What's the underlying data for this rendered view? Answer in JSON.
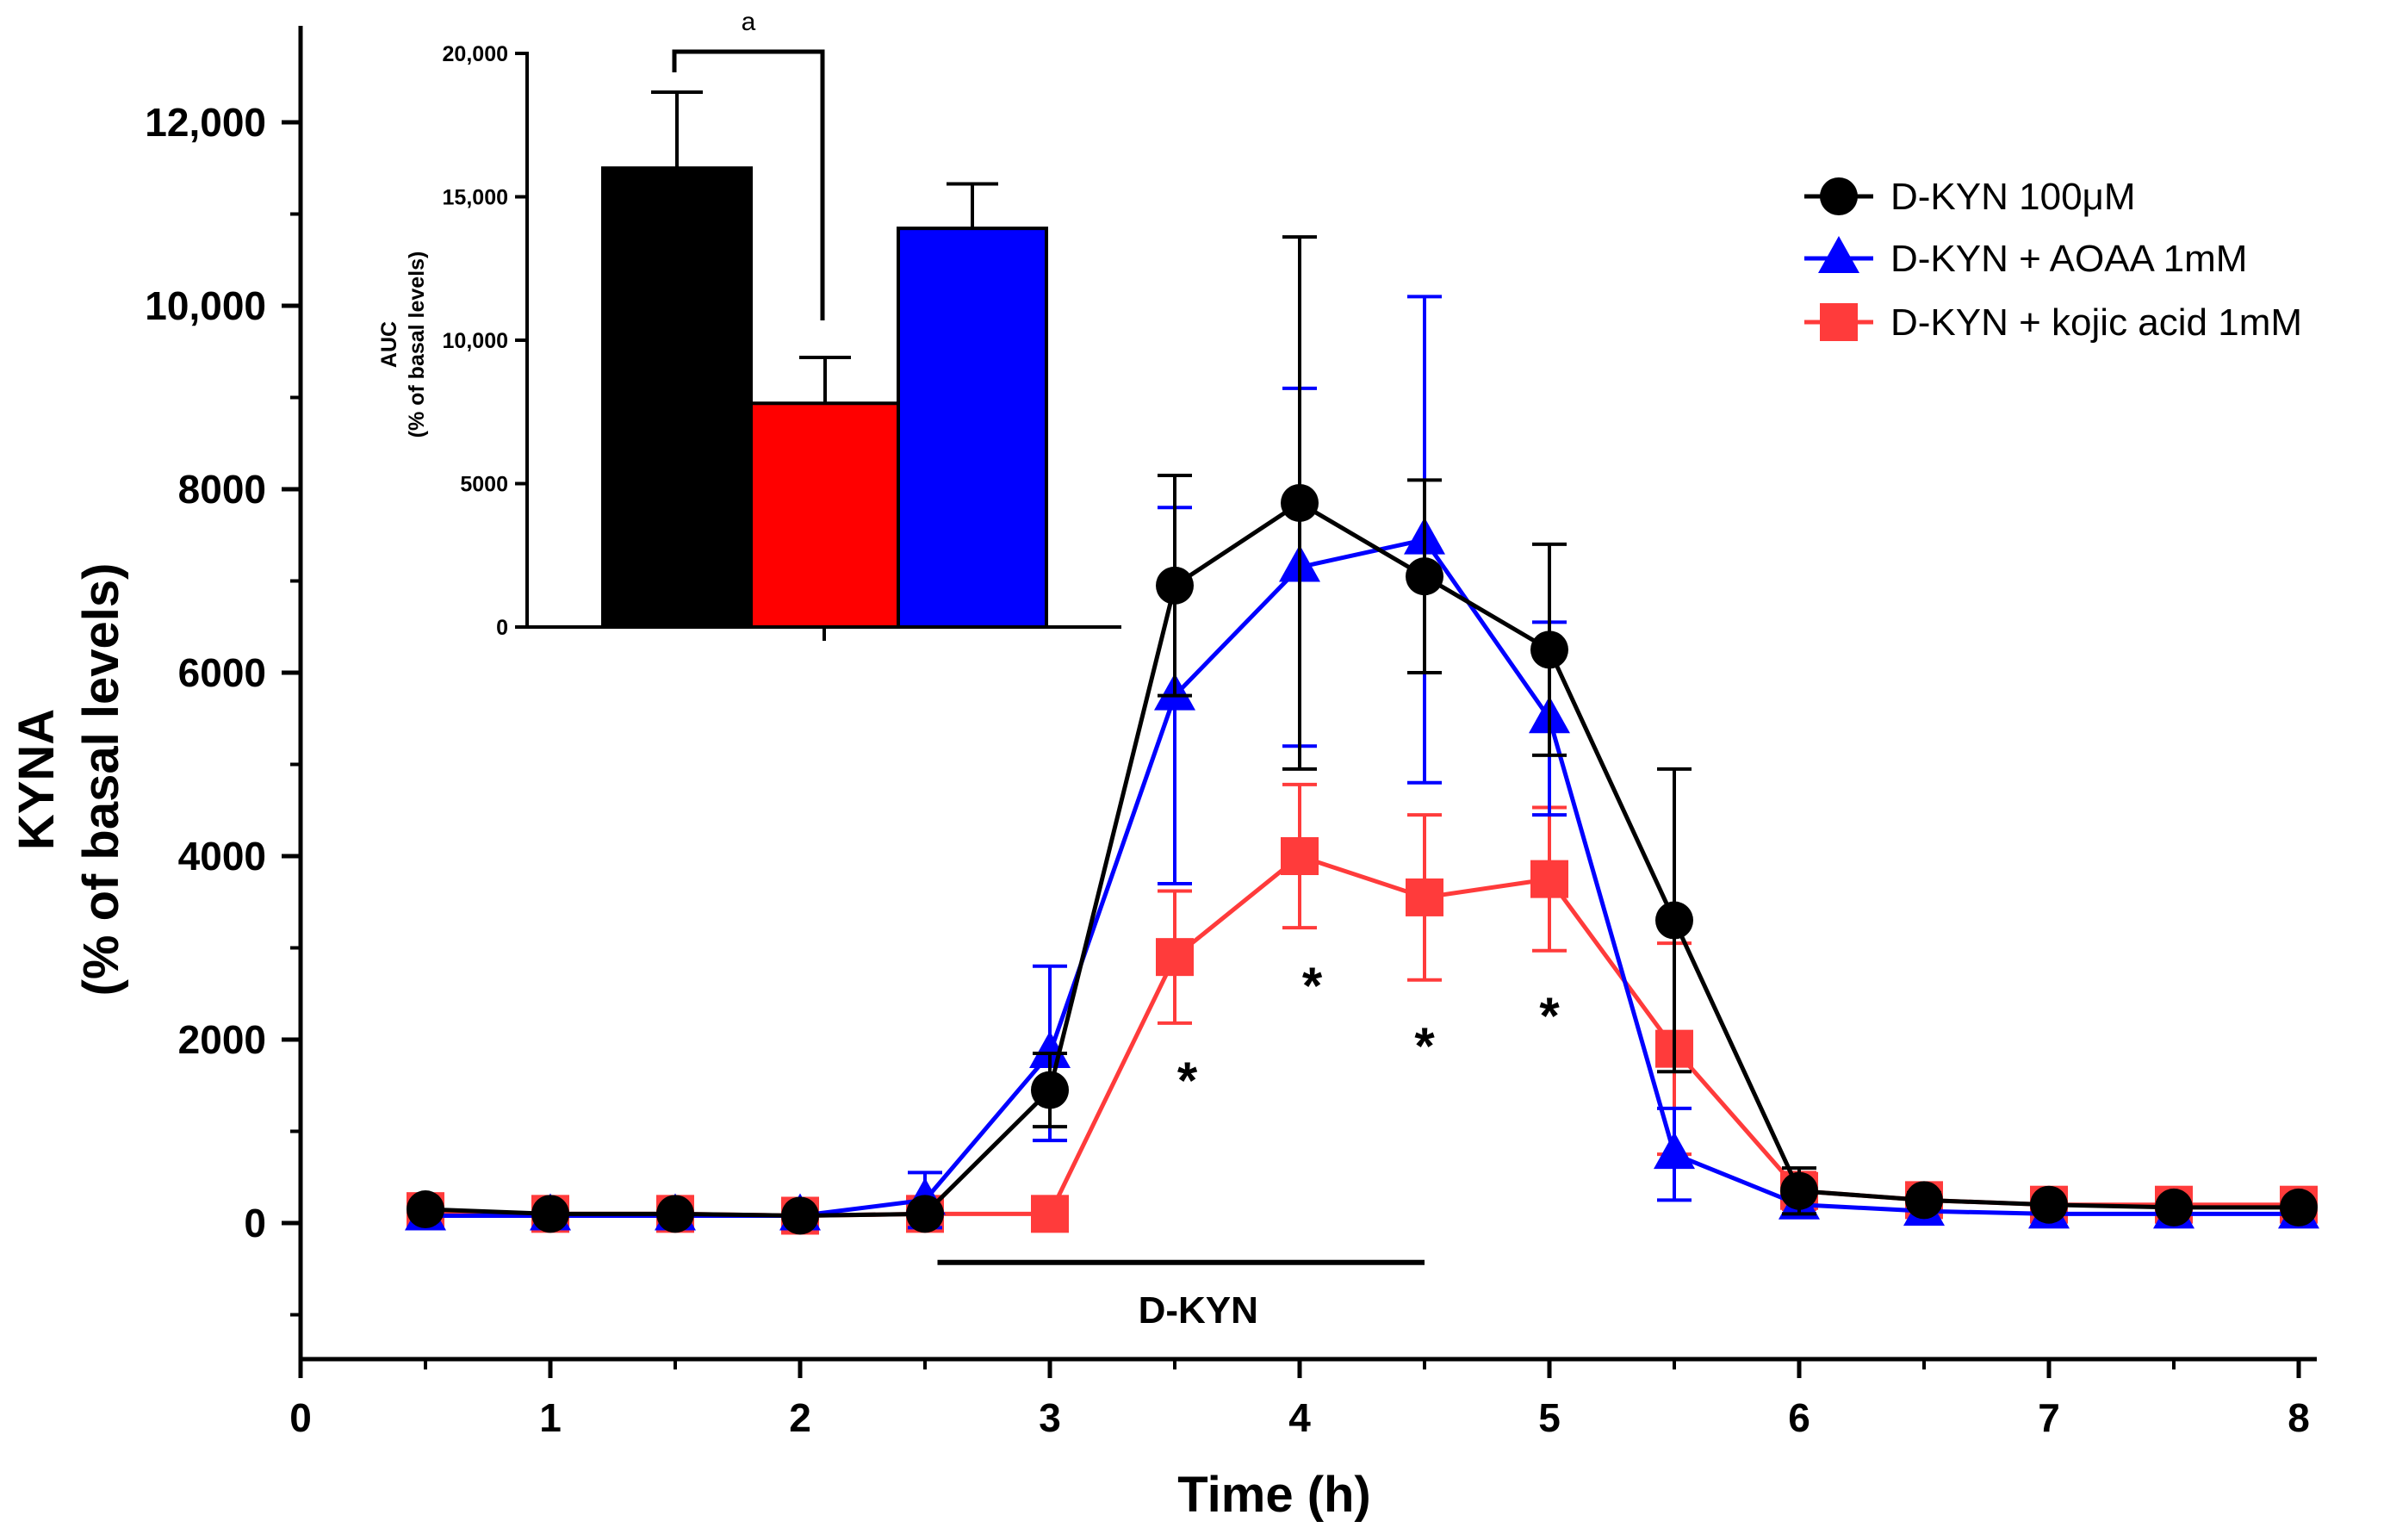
{
  "chart_data": [
    {
      "type": "line",
      "title": "",
      "xlabel": "Time (h)",
      "ylabel_line1": "KYNA",
      "ylabel_line2": "(% of basal levels)",
      "xlim": [
        0,
        8.1
      ],
      "ylim": [
        -1500,
        13000
      ],
      "xticks": [
        0,
        1,
        2,
        3,
        4,
        5,
        6,
        7,
        8
      ],
      "xtick_labels": [
        "0",
        "1",
        "2",
        "3",
        "4",
        "5",
        "6",
        "7",
        "8"
      ],
      "yticks": [
        0,
        2000,
        4000,
        6000,
        8000,
        10000,
        12000
      ],
      "ytick_labels": [
        "0",
        "2000",
        "4000",
        "6000",
        "8000",
        "10,000",
        "12,000"
      ],
      "legend_position": "top-right",
      "series": [
        {
          "name": "D-KYN 100μM",
          "color": "#000000",
          "marker": "circle",
          "x": [
            0.5,
            1,
            1.5,
            2,
            2.5,
            3,
            3.5,
            4,
            4.5,
            5,
            5.5,
            6,
            6.5,
            7,
            7.5,
            8
          ],
          "y": [
            150,
            100,
            100,
            80,
            100,
            1450,
            6950,
            7850,
            7050,
            6250,
            3300,
            350,
            250,
            200,
            170,
            170
          ],
          "err": [
            30,
            30,
            30,
            30,
            30,
            400,
            1200,
            2900,
            1050,
            1150,
            1650,
            250,
            80,
            60,
            60,
            60
          ]
        },
        {
          "name": "D-KYN + AOAA 1mM",
          "color": "#0000ff",
          "marker": "triangle",
          "x": [
            0.5,
            1,
            1.5,
            2,
            2.5,
            3,
            3.5,
            4,
            4.5,
            5,
            5.5,
            6,
            6.5,
            7,
            7.5,
            8
          ],
          "y": [
            80,
            80,
            80,
            80,
            250,
            1850,
            5750,
            7150,
            7450,
            5500,
            750,
            200,
            130,
            100,
            100,
            100
          ],
          "err": [
            30,
            30,
            30,
            30,
            300,
            950,
            2050,
            1950,
            2650,
            1050,
            500,
            100,
            60,
            50,
            50,
            50
          ]
        },
        {
          "name": "D-KYN + kojic acid 1mM",
          "color": "#ff3b3b",
          "marker": "square",
          "x": [
            0.5,
            1,
            1.5,
            2,
            2.5,
            3,
            3.5,
            4,
            4.5,
            5,
            5.5,
            6,
            6.5,
            7,
            7.5,
            8
          ],
          "y": [
            130,
            100,
            100,
            80,
            100,
            100,
            2900,
            4000,
            3550,
            3750,
            1900,
            350,
            250,
            200,
            200,
            200
          ],
          "err": [
            30,
            30,
            30,
            30,
            30,
            30,
            720,
            780,
            900,
            780,
            1150,
            200,
            80,
            60,
            60,
            60
          ]
        }
      ],
      "annotations": {
        "bar_label": "D-KYN",
        "bar_x_range": [
          2.55,
          4.5
        ],
        "significance_symbol": "*",
        "significance_x": [
          3.55,
          4.05,
          4.5,
          5
        ]
      }
    },
    {
      "type": "bar",
      "title": "",
      "xlabel": "",
      "ylabel_line1": "AUC",
      "ylabel_line2": "(% of basal levels)",
      "ylim": [
        0,
        20000
      ],
      "yticks": [
        0,
        5000,
        10000,
        15000,
        20000
      ],
      "ytick_labels": [
        "0",
        "5000",
        "10,000",
        "15,000",
        "20,000"
      ],
      "categories": [
        "D-KYN 100μM",
        "D-KYN + kojic acid 1mM",
        "D-KYN + AOAA 1mM"
      ],
      "values": [
        16000,
        7800,
        13900
      ],
      "errors": [
        2650,
        1600,
        1550
      ],
      "colors": [
        "#000000",
        "#ff0000",
        "#0000ff"
      ],
      "significance": {
        "label": "a",
        "between": [
          0,
          1
        ]
      }
    }
  ]
}
